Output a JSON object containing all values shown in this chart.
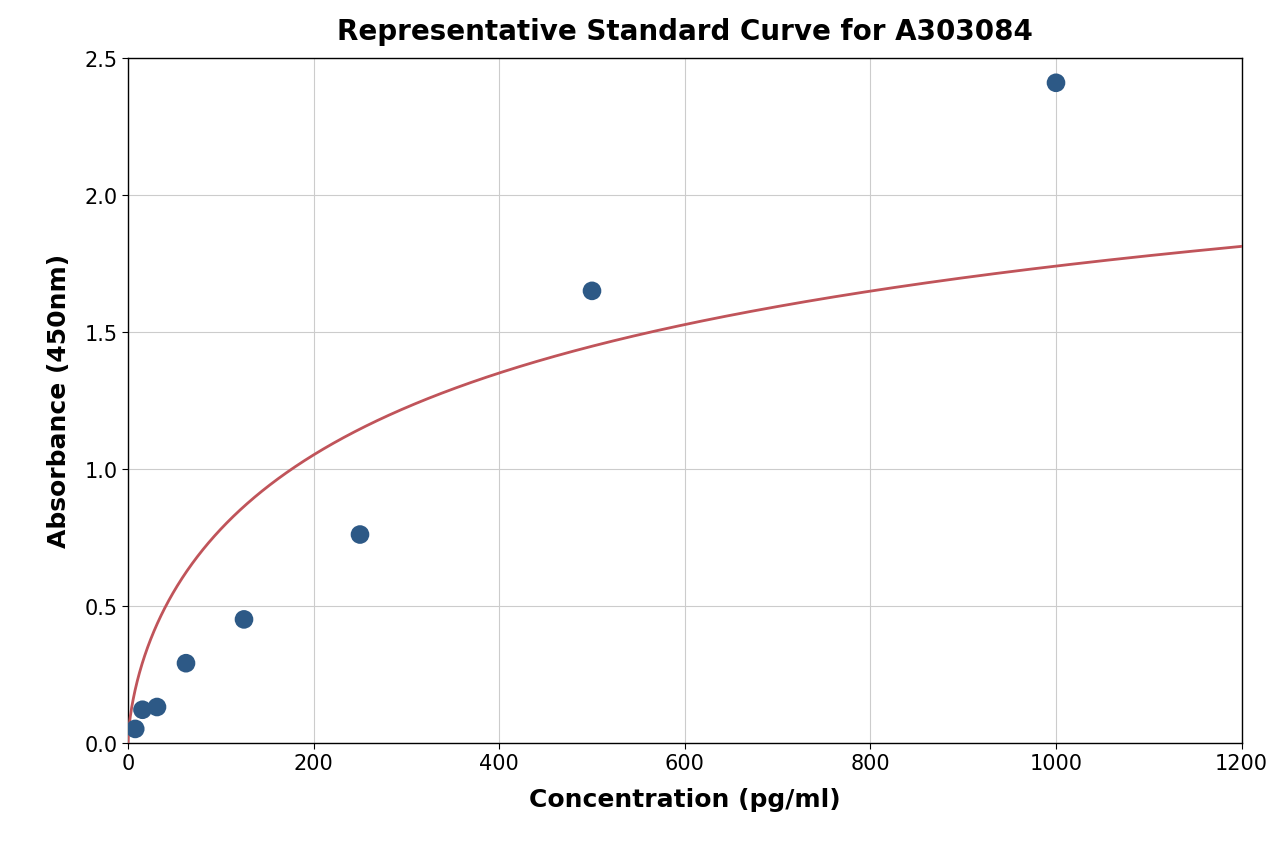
{
  "title": "Representative Standard Curve for A303084",
  "xlabel": "Concentration (pg/ml)",
  "ylabel": "Absorbance (450nm)",
  "scatter_x": [
    7.8,
    15.6,
    31.25,
    62.5,
    125,
    250,
    500,
    1000
  ],
  "scatter_y": [
    0.05,
    0.12,
    0.13,
    0.29,
    0.45,
    0.76,
    1.65,
    2.41
  ],
  "scatter_color": "#2d5986",
  "curve_color": "#c0545a",
  "xlim": [
    0,
    1200
  ],
  "ylim": [
    0.0,
    2.5
  ],
  "xticks": [
    0,
    200,
    400,
    600,
    800,
    1000,
    1200
  ],
  "yticks": [
    0.0,
    0.5,
    1.0,
    1.5,
    2.0,
    2.5
  ],
  "title_fontsize": 20,
  "label_fontsize": 18,
  "tick_fontsize": 15,
  "scatter_size": 100,
  "background_color": "#ffffff",
  "grid_color": "#cccccc",
  "figure_width": 12.8,
  "figure_height": 8.45,
  "dpi": 100
}
